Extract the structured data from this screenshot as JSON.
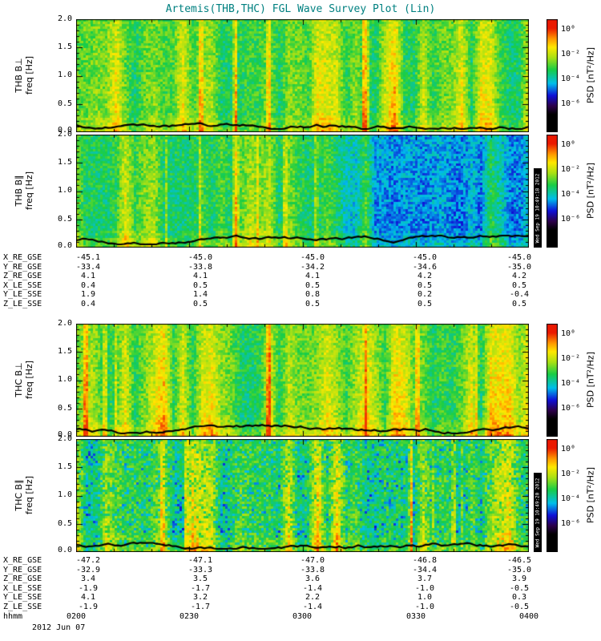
{
  "title": "Artemis(THB,THC) FGL Wave Survey Plot (Lin)",
  "colors": {
    "title": "#008080",
    "background": "#ffffff",
    "axis": "#000000",
    "trace": "#000000"
  },
  "chart_data": [
    {
      "type": "heatmap",
      "name": "THB B-perp spectrogram",
      "ylabel_line1": "THB B⊥",
      "ylabel_line2": "freq [Hz]",
      "ylim": [
        0.0,
        2.0
      ],
      "yticks": [
        "0.0",
        "0.5",
        "1.0",
        "1.5",
        "2.0"
      ],
      "x_ticks_hhmm": [
        "0200",
        "0230",
        "0300",
        "0330",
        "0400"
      ],
      "colorbar": {
        "label": "PSD [nT²/Hz]",
        "ticks": [
          "10⁰",
          "10⁻²",
          "10⁻⁴",
          "10⁻⁶"
        ]
      },
      "timestamp": "",
      "style": {
        "seed": 11,
        "base": 0.57,
        "stripe": 0.3,
        "cool_right": false,
        "cool_noise": false
      }
    },
    {
      "type": "heatmap",
      "name": "THB B-parallel spectrogram",
      "ylabel_line1": "THB B∥",
      "ylabel_line2": "freq [Hz]",
      "ylim": [
        0.0,
        2.0
      ],
      "yticks": [
        "0.0",
        "0.5",
        "1.0",
        "1.5",
        "2.0"
      ],
      "x_ticks_hhmm": [
        "0200",
        "0230",
        "0300",
        "0330",
        "0400"
      ],
      "colorbar": {
        "label": "PSD [nT²/Hz]",
        "ticks": [
          "10⁰",
          "10⁻²",
          "10⁻⁴",
          "10⁻⁶"
        ]
      },
      "timestamp": "Wed Sep 19 10:49:18 2012",
      "style": {
        "seed": 22,
        "base": 0.55,
        "stripe": 0.26,
        "cool_right": true,
        "cool_noise": false
      }
    },
    {
      "type": "heatmap",
      "name": "THC B-perp spectrogram",
      "ylabel_line1": "THC B⊥",
      "ylabel_line2": "freq [Hz]",
      "ylim": [
        0.0,
        2.0
      ],
      "yticks": [
        "0.0",
        "0.5",
        "1.0",
        "1.5",
        "2.0"
      ],
      "x_ticks_hhmm": [
        "0200",
        "0230",
        "0300",
        "0330",
        "0400"
      ],
      "colorbar": {
        "label": "PSD [nT²/Hz]",
        "ticks": [
          "10⁰",
          "10⁻²",
          "10⁻⁴",
          "10⁻⁶"
        ]
      },
      "timestamp": "",
      "style": {
        "seed": 33,
        "base": 0.57,
        "stripe": 0.3,
        "cool_right": false,
        "cool_noise": false
      }
    },
    {
      "type": "heatmap",
      "name": "THC B-parallel spectrogram",
      "ylabel_line1": "THC B∥",
      "ylabel_line2": "freq [Hz]",
      "ylim": [
        0.0,
        2.0
      ],
      "yticks": [
        "0.0",
        "0.5",
        "1.0",
        "1.5",
        "2.0"
      ],
      "x_ticks_hhmm": [
        "0200",
        "0230",
        "0300",
        "0330",
        "0400"
      ],
      "colorbar": {
        "label": "PSD [nT²/Hz]",
        "ticks": [
          "10⁰",
          "10⁻²",
          "10⁻⁴",
          "10⁻⁶"
        ]
      },
      "timestamp": "Wed Sep 19 10:49:20 2012",
      "style": {
        "seed": 44,
        "base": 0.54,
        "stripe": 0.28,
        "cool_right": false,
        "cool_noise": true
      }
    }
  ],
  "ephemeris_thb": {
    "rows": [
      {
        "label": "X_RE_GSE",
        "values": [
          "-45.1",
          "-45.0",
          "-45.0",
          "-45.0",
          "-45.0"
        ]
      },
      {
        "label": "Y_RE_GSE",
        "values": [
          "-33.4",
          "-33.8",
          "-34.2",
          "-34.6",
          "-35.0"
        ]
      },
      {
        "label": "Z_RE_GSE",
        "values": [
          "4.1",
          "4.1",
          "4.1",
          "4.2",
          "4.2"
        ]
      },
      {
        "label": "X_LE_SSE",
        "values": [
          "0.4",
          "0.5",
          "0.5",
          "0.5",
          "0.5"
        ]
      },
      {
        "label": "Y_LE_SSE",
        "values": [
          "1.9",
          "1.4",
          "0.8",
          "0.2",
          "-0.4"
        ]
      },
      {
        "label": "Z_LE_SSE",
        "values": [
          "0.4",
          "0.5",
          "0.5",
          "0.5",
          "0.5"
        ]
      }
    ]
  },
  "ephemeris_thc": {
    "rows": [
      {
        "label": "X_RE_GSE",
        "values": [
          "-47.2",
          "-47.1",
          "-47.0",
          "-46.8",
          "-46.5"
        ]
      },
      {
        "label": "Y_RE_GSE",
        "values": [
          "-32.9",
          "-33.3",
          "-33.8",
          "-34.4",
          "-35.0"
        ]
      },
      {
        "label": "Z_RE_GSE",
        "values": [
          "3.4",
          "3.5",
          "3.6",
          "3.7",
          "3.9"
        ]
      },
      {
        "label": "X_LE_SSE",
        "values": [
          "-1.9",
          "-1.7",
          "-1.4",
          "-1.0",
          "-0.5"
        ]
      },
      {
        "label": "Y_LE_SSE",
        "values": [
          "4.1",
          "3.2",
          "2.2",
          "1.0",
          "0.3"
        ]
      },
      {
        "label": "Z_LE_SSE",
        "values": [
          "-1.9",
          "-1.7",
          "-1.4",
          "-1.0",
          "-0.5"
        ]
      }
    ]
  },
  "time_axis": {
    "label": "hhmm",
    "ticks": [
      "0200",
      "0230",
      "0300",
      "0330",
      "0400"
    ],
    "date": "2012 Jun 07"
  }
}
